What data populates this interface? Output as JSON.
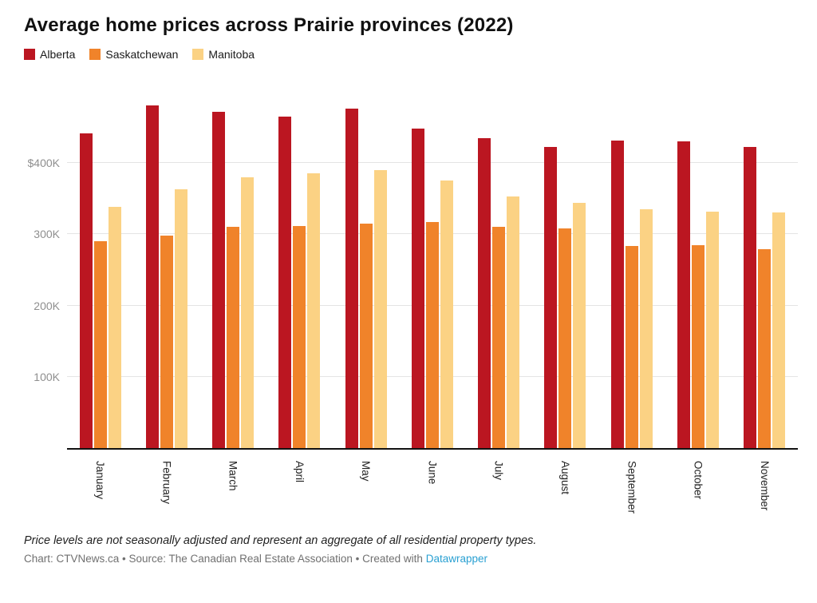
{
  "chart": {
    "title": "Average home prices across Prairie provinces (2022)"
  },
  "chart_data": {
    "type": "bar",
    "title": "Average home prices across Prairie provinces (2022)",
    "categories": [
      "January",
      "February",
      "March",
      "April",
      "May",
      "June",
      "July",
      "August",
      "September",
      "October",
      "November"
    ],
    "series": [
      {
        "name": "Alberta",
        "color": "#bb1621",
        "values": [
          442000,
          481000,
          472000,
          465000,
          476000,
          448000,
          435000,
          423000,
          431000,
          430000,
          423000
        ]
      },
      {
        "name": "Saskatchewan",
        "color": "#f0832a",
        "values": [
          290000,
          298000,
          310000,
          312000,
          315000,
          317000,
          311000,
          308000,
          284000,
          285000,
          279000
        ]
      },
      {
        "name": "Manitoba",
        "color": "#fbd284",
        "values": [
          338000,
          363000,
          380000,
          386000,
          390000,
          375000,
          353000,
          344000,
          335000,
          332000,
          331000
        ]
      }
    ],
    "xlabel": "",
    "ylabel": "",
    "y_ticks": [
      {
        "value": 100000,
        "label": "100K"
      },
      {
        "value": 200000,
        "label": "200K"
      },
      {
        "value": 300000,
        "label": "300K"
      },
      {
        "value": 400000,
        "label": "$400K"
      }
    ],
    "ylim": [
      0,
      510000
    ],
    "grid": "horizontal",
    "legend_position": "top"
  },
  "footer": {
    "note": "Price levels are not seasonally adjusted and represent an aggregate of all residential property types.",
    "credit_prefix": "Chart: CTVNews.ca • Source: The Canadian Real Estate Association • Created with ",
    "credit_link": "Datawrapper",
    "credit_link_color": "#29a0d2"
  }
}
